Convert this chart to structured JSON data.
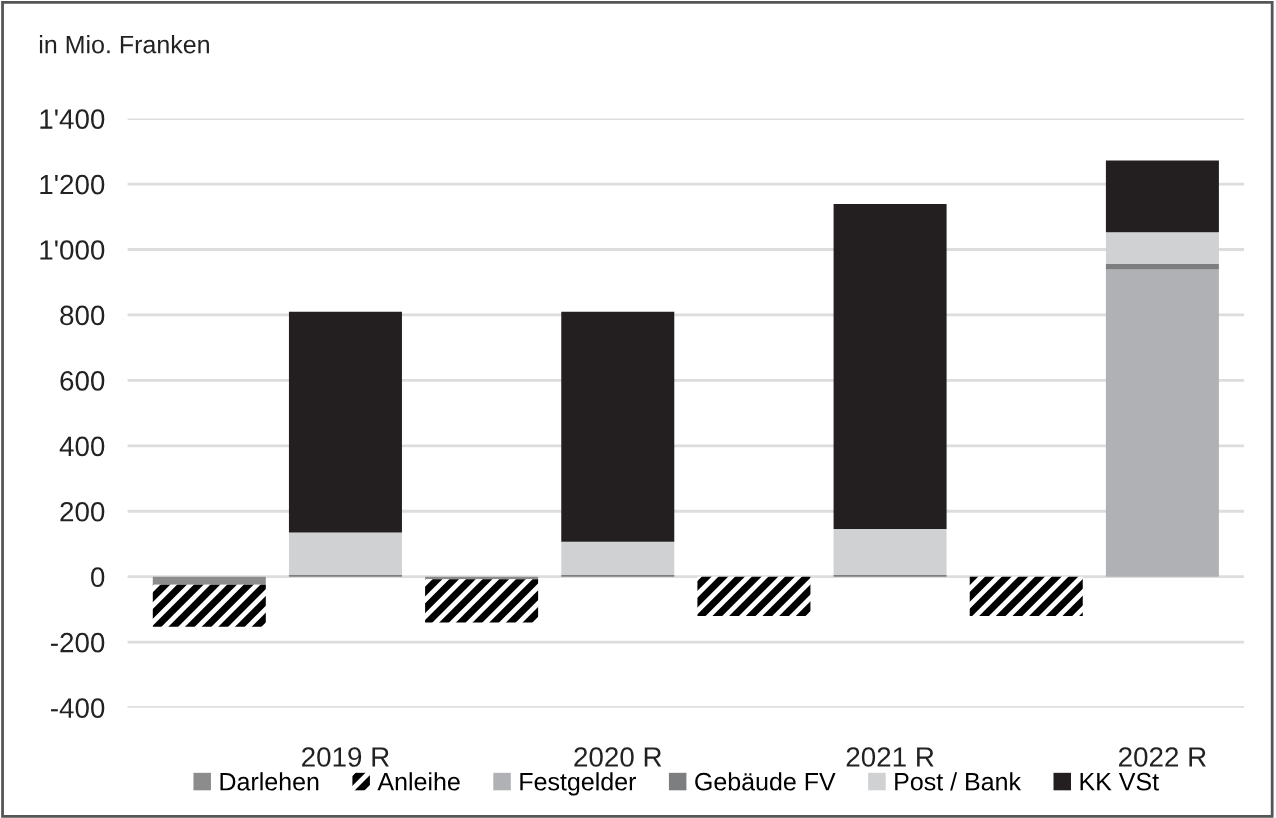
{
  "chart_data": {
    "type": "bar",
    "stacked": true,
    "ylabel": "in Mio. Franken",
    "categories": [
      null,
      "2019 R",
      null,
      "2020 R",
      null,
      "2021 R",
      null,
      "2022 R"
    ],
    "series": [
      {
        "name": "Darlehen",
        "color": "#8c8c8c",
        "values": [
          -25,
          null,
          -8,
          null,
          0,
          null,
          0,
          null
        ]
      },
      {
        "name": "Anleihe",
        "color": "#000000",
        "values": [
          -128,
          null,
          -132,
          null,
          -120,
          null,
          -120,
          null
        ]
      },
      {
        "name": "Festgelder",
        "color": "#b0b1b4",
        "values": [
          null,
          0,
          null,
          0,
          null,
          0,
          null,
          939
        ]
      },
      {
        "name": "Gebäude FV",
        "color": "#7d7e80",
        "values": [
          null,
          5,
          null,
          5,
          null,
          5,
          null,
          17
        ]
      },
      {
        "name": "Post / Bank",
        "color": "#d0d1d3",
        "values": [
          null,
          130,
          null,
          102,
          null,
          141,
          null,
          97
        ]
      },
      {
        "name": "KK VSt",
        "color": "#231f20",
        "values": [
          null,
          675,
          null,
          703,
          null,
          993,
          null,
          219
        ]
      }
    ],
    "ylim": [
      -400,
      1400
    ],
    "yticks": [
      -400,
      -200,
      0,
      200,
      400,
      600,
      800,
      {
        "value": 1000,
        "label": "1'000"
      },
      {
        "value": 1200,
        "label": "1'200"
      },
      {
        "value": 1400,
        "label": "1'400"
      }
    ],
    "grid": "y",
    "legend": "bottom"
  }
}
